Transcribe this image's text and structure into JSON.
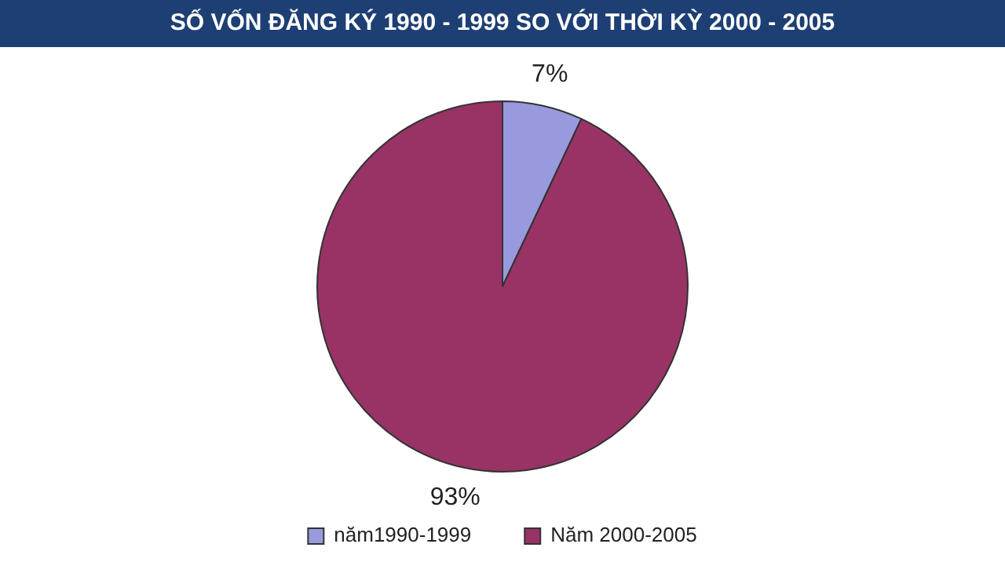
{
  "chart_data": {
    "type": "pie",
    "title": "SỐ VỐN ĐĂNG KÝ 1990 - 1999 SO VỚI THỜI KỲ 2000 - 2005",
    "categories": [
      "năm1990-1999",
      "Năm 2000-2005"
    ],
    "values": [
      7,
      93
    ],
    "value_labels": [
      "7%",
      "93%"
    ],
    "colors": [
      "#9999dd",
      "#993366"
    ],
    "legend": "bottom"
  }
}
